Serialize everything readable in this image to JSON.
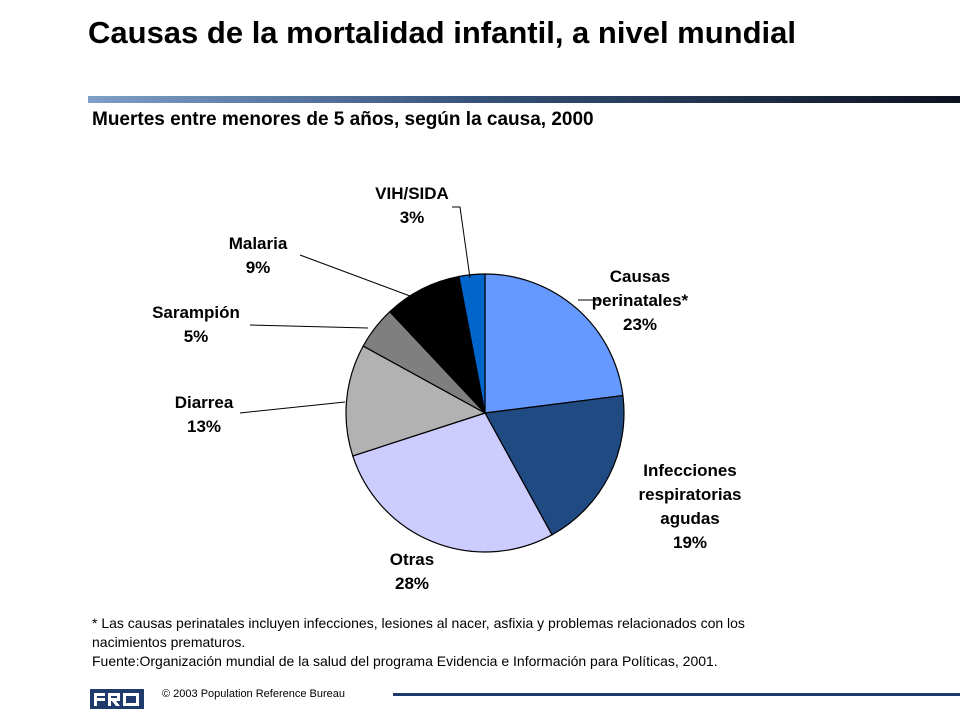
{
  "title": "Causas de la mortalidad infantil, a nivel mundial",
  "subtitle": "Muertes entre menores de 5 años, según la causa, 2000",
  "chart_data": {
    "type": "pie",
    "start_angle_deg": 90,
    "direction": "clockwise",
    "slices": [
      {
        "label_lines": [
          "Causas",
          "perinatales*"
        ],
        "value": 23,
        "display": "23%",
        "color": "#6699ff"
      },
      {
        "label_lines": [
          "Infecciones",
          "respiratorias",
          "agudas"
        ],
        "value": 19,
        "display": "19%",
        "color": "#1f4a82"
      },
      {
        "label_lines": [
          "Otras"
        ],
        "value": 28,
        "display": "28%",
        "color": "#ccccff"
      },
      {
        "label_lines": [
          "Diarrea"
        ],
        "value": 13,
        "display": "13%",
        "color": "#b2b2b2"
      },
      {
        "label_lines": [
          "Sarampión"
        ],
        "value": 5,
        "display": "5%",
        "color": "#7f7f7f"
      },
      {
        "label_lines": [
          "Malaria"
        ],
        "value": 9,
        "display": "9%",
        "color": "#000000"
      },
      {
        "label_lines": [
          "VIH/SIDA"
        ],
        "value": 3,
        "display": "3%",
        "color": "#0066cc"
      }
    ]
  },
  "footnote": {
    "line1": "* Las causas perinatales incluyen infecciones, lesiones al nacer, asfixia y problemas relacionados con los",
    "line2": "nacimientos prematuros.",
    "line3": "Fuente:Organización mundial de la salud del programa Evidencia e Información para Políticas, 2001."
  },
  "footer": {
    "logo_text": "PRB",
    "copyright": "© 2003 Population Reference Bureau"
  },
  "colors": {
    "title_rule_start": "#7f9fc8",
    "title_rule_end": "#0d1220",
    "footer_rule": "#1f3b6b"
  }
}
